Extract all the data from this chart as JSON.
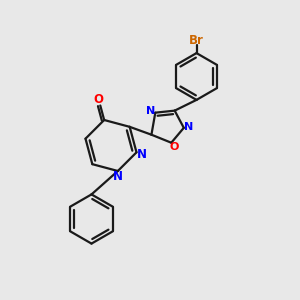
{
  "bg_color": "#e8e8e8",
  "bond_color": "#1a1a1a",
  "N_color": "#0000ff",
  "O_color": "#ff0000",
  "Br_color": "#cc6600",
  "line_width": 1.6,
  "fig_w": 3.0,
  "fig_h": 3.0,
  "dpi": 100,
  "xlim": [
    0,
    10
  ],
  "ylim": [
    0,
    10
  ]
}
